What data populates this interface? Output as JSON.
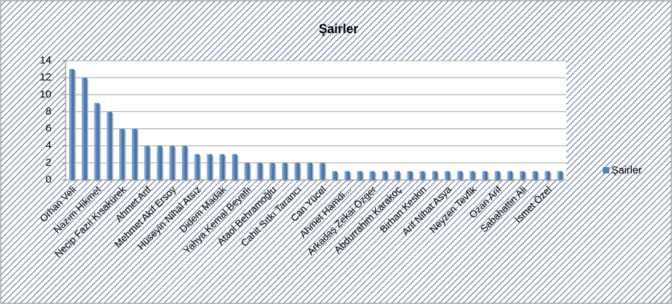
{
  "chart_data": {
    "type": "bar",
    "title": "Şairler",
    "categories": [
      "Orhan Veli",
      null,
      "Nazım Hikmet",
      null,
      "Necip Fazıl Kısakürek",
      null,
      "Ahmet Arif",
      null,
      "Mehmet Akif Ersoy",
      null,
      "Hüseyin Nihal Atsız",
      null,
      "Didem Madak",
      null,
      "Yahya Kemal Beyatlı",
      null,
      "Ataol Behramoğlu",
      null,
      "Cahit Sıtkı Tarancı",
      null,
      "Can Yücel",
      null,
      "Ahmet Hamdi...",
      null,
      "Arkadaş Zekai Özger",
      null,
      "Abdurrahim Karakoç",
      null,
      "Birhan Keskin",
      null,
      "Arif Nihat Asya",
      null,
      "Neyzen Tevfik",
      null,
      "Ozan Arif",
      null,
      "Sabahattin Ali",
      null,
      "İsmet Özel",
      null
    ],
    "series": [
      {
        "name": "Şairler",
        "color": "#4f81bd",
        "values": [
          13,
          12,
          9,
          8,
          6,
          6,
          4,
          4,
          4,
          4,
          3,
          3,
          3,
          3,
          2,
          2,
          2,
          2,
          2,
          2,
          2,
          1,
          1,
          1,
          1,
          1,
          1,
          1,
          1,
          1,
          1,
          1,
          1,
          1,
          1,
          1,
          1,
          1,
          1,
          1
        ]
      }
    ],
    "ylim": [
      0,
      14
    ],
    "yticks": [
      0,
      2,
      4,
      6,
      8,
      10,
      12,
      14
    ],
    "grid": true,
    "legend": "right"
  }
}
